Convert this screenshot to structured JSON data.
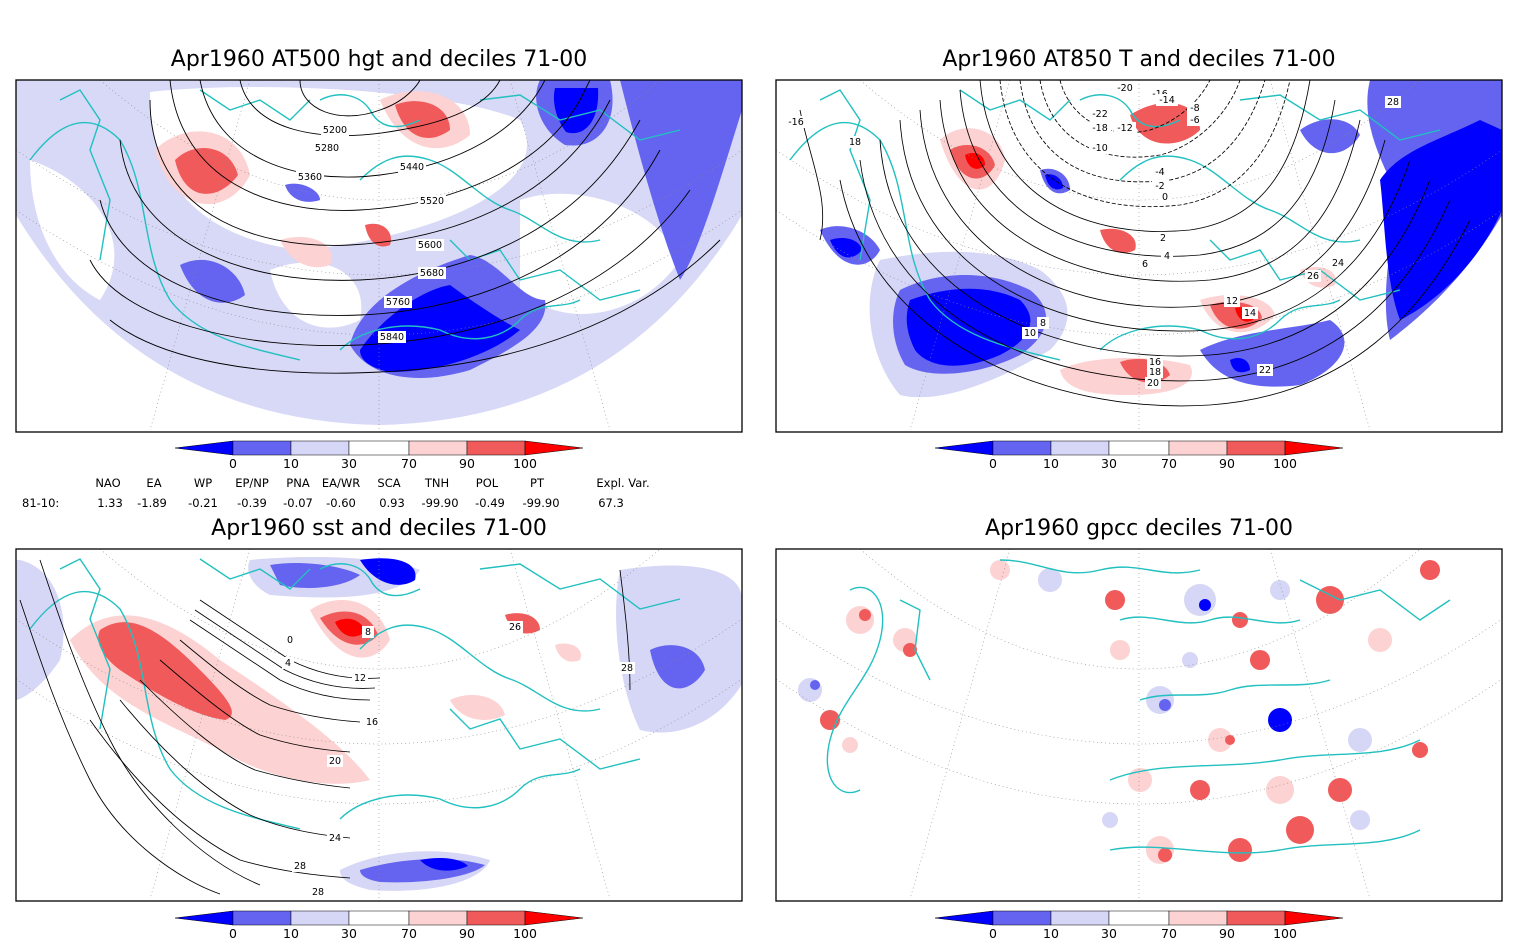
{
  "panels": [
    {
      "title": "Apr1960 AT500 hgt and deciles 71-00",
      "contour_labels": [
        "5200",
        "5280",
        "5360",
        "5440",
        "5520",
        "5600",
        "5680",
        "5760",
        "5840"
      ]
    },
    {
      "title": "Apr1960 AT850 T and deciles 71-00",
      "contour_labels": [
        "-20",
        "-16",
        "-14",
        "-22",
        "-18",
        "-12",
        "-10",
        "-8",
        "-6",
        "-4",
        "-2",
        "0",
        "2",
        "4",
        "6",
        "8",
        "10",
        "12",
        "14",
        "16",
        "18",
        "20",
        "22",
        "24",
        "26",
        "28",
        "-16",
        "18"
      ]
    },
    {
      "title": "Apr1960 sst and deciles 71-00",
      "contour_labels": [
        "0",
        "4",
        "8",
        "12",
        "16",
        "20",
        "24",
        "28",
        "28",
        "26",
        "28"
      ]
    },
    {
      "title": "Apr1960 gpcc deciles 71-00",
      "contour_labels": []
    }
  ],
  "colorbar": {
    "ticks": [
      "0",
      "10",
      "30",
      "70",
      "90",
      "100"
    ],
    "colors": [
      "#0000ff",
      "#6464f0",
      "#d6d6f6",
      "#ffffff",
      "#fcd2d2",
      "#f05a5a",
      "#ff0000"
    ]
  },
  "indices": {
    "headers": [
      "NAO",
      "EA",
      "WP",
      "EP/NP",
      "PNA",
      "EA/WR",
      "SCA",
      "TNH",
      "POL",
      "PT",
      "Expl. Var."
    ],
    "row_label": "81-10:",
    "values": [
      "1.33",
      "-1.89",
      "-0.21",
      "-0.39",
      "-0.07",
      "-0.60",
      "0.93",
      "-99.90",
      "-0.49",
      "-99.90",
      "67.3"
    ]
  },
  "colors": {
    "coast": "#22c0c0",
    "low": "#0000ff",
    "high": "#ff0000"
  }
}
